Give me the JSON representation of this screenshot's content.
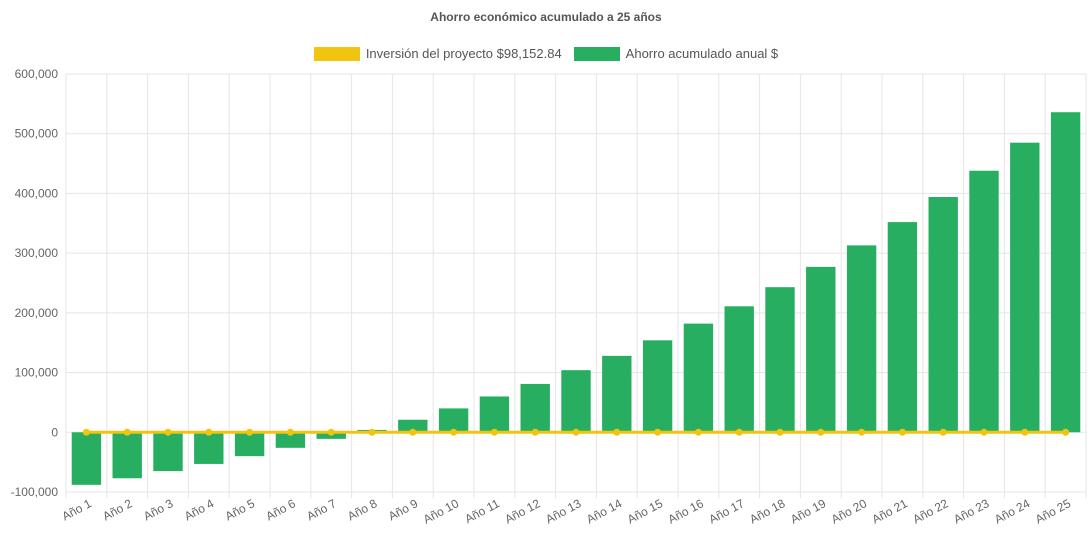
{
  "chart_data": {
    "type": "bar",
    "title": "Ahorro económico acumulado a 25 años",
    "categories": [
      "Año 1",
      "Año 2",
      "Año 3",
      "Año 4",
      "Año 5",
      "Año 6",
      "Año 7",
      "Año 8",
      "Año 9",
      "Año 10",
      "Año 11",
      "Año 12",
      "Año 13",
      "Año 14",
      "Año 15",
      "Año 16",
      "Año 17",
      "Año 18",
      "Año 19",
      "Año 20",
      "Año 21",
      "Año 22",
      "Año 23",
      "Año 24",
      "Año 25"
    ],
    "series": [
      {
        "name": "Inversión del proyecto $98,152.84",
        "type": "line",
        "color": "#f1c40f",
        "values": [
          0,
          0,
          0,
          0,
          0,
          0,
          0,
          0,
          0,
          0,
          0,
          0,
          0,
          0,
          0,
          0,
          0,
          0,
          0,
          0,
          0,
          0,
          0,
          0,
          0
        ]
      },
      {
        "name": "Ahorro acumulado anual $",
        "type": "bar",
        "color": "#27ae60",
        "values": [
          -88000,
          -77000,
          -65000,
          -53000,
          -40000,
          -26000,
          -11000,
          4000,
          21000,
          40000,
          60000,
          81000,
          104000,
          128000,
          154000,
          182000,
          211000,
          243000,
          277000,
          313000,
          352000,
          394000,
          438000,
          485000,
          536000
        ]
      }
    ],
    "ylim": [
      -100000,
      600000
    ],
    "yticks": [
      -100000,
      0,
      100000,
      200000,
      300000,
      400000,
      500000,
      600000
    ],
    "ytick_labels": [
      "-100,000",
      "0",
      "100,000",
      "200,000",
      "300,000",
      "400,000",
      "500,000",
      "600,000"
    ],
    "grid": true,
    "legend_position": "top"
  }
}
